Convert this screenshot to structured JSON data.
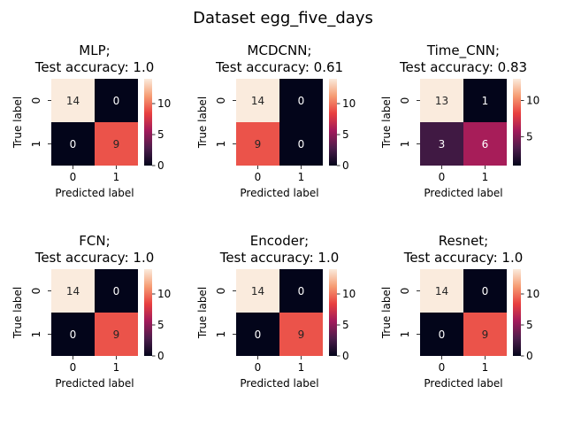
{
  "figure": {
    "title": "Dataset egg_five_days"
  },
  "colors": {
    "low": "#03051a",
    "mid1": "#4c1d4b",
    "mid2": "#a11a5b",
    "mid3": "#e83f3f",
    "mid4": "#f69c73",
    "high": "#faebdd"
  },
  "chart_data": [
    {
      "type": "heatmap",
      "title": "MLP;\nTest accuracy: 1.0",
      "xlabel": "Predicted label",
      "ylabel": "True label",
      "x_ticks": [
        "0",
        "1"
      ],
      "y_ticks": [
        "0",
        "1"
      ],
      "values": [
        [
          14,
          0
        ],
        [
          0,
          9
        ]
      ],
      "colorbar": {
        "min": 0,
        "max": 14,
        "ticks": [
          0,
          5,
          10
        ]
      }
    },
    {
      "type": "heatmap",
      "title": "MCDCNN;\nTest accuracy: 0.61",
      "xlabel": "Predicted label",
      "ylabel": "True label",
      "x_ticks": [
        "0",
        "1"
      ],
      "y_ticks": [
        "0",
        "1"
      ],
      "values": [
        [
          14,
          0
        ],
        [
          9,
          0
        ]
      ],
      "colorbar": {
        "min": 0,
        "max": 14,
        "ticks": [
          0,
          5,
          10
        ]
      }
    },
    {
      "type": "heatmap",
      "title": "Time_CNN;\nTest accuracy: 0.83",
      "xlabel": "Predicted label",
      "ylabel": "True label",
      "x_ticks": [
        "0",
        "1"
      ],
      "y_ticks": [
        "0",
        "1"
      ],
      "values": [
        [
          13,
          1
        ],
        [
          3,
          6
        ]
      ],
      "colorbar": {
        "min": 1,
        "max": 13,
        "ticks": [
          5,
          10
        ]
      }
    },
    {
      "type": "heatmap",
      "title": "FCN;\nTest accuracy: 1.0",
      "xlabel": "Predicted label",
      "ylabel": "True label",
      "x_ticks": [
        "0",
        "1"
      ],
      "y_ticks": [
        "0",
        "1"
      ],
      "values": [
        [
          14,
          0
        ],
        [
          0,
          9
        ]
      ],
      "colorbar": {
        "min": 0,
        "max": 14,
        "ticks": [
          0,
          5,
          10
        ]
      }
    },
    {
      "type": "heatmap",
      "title": "Encoder;\nTest accuracy: 1.0",
      "xlabel": "Predicted label",
      "ylabel": "True label",
      "x_ticks": [
        "0",
        "1"
      ],
      "y_ticks": [
        "0",
        "1"
      ],
      "values": [
        [
          14,
          0
        ],
        [
          0,
          9
        ]
      ],
      "colorbar": {
        "min": 0,
        "max": 14,
        "ticks": [
          0,
          5,
          10
        ]
      }
    },
    {
      "type": "heatmap",
      "title": "Resnet;\nTest accuracy: 1.0",
      "xlabel": "Predicted label",
      "ylabel": "True label",
      "x_ticks": [
        "0",
        "1"
      ],
      "y_ticks": [
        "0",
        "1"
      ],
      "values": [
        [
          14,
          0
        ],
        [
          0,
          9
        ]
      ],
      "colorbar": {
        "min": 0,
        "max": 14,
        "ticks": [
          0,
          5,
          10
        ]
      }
    }
  ]
}
